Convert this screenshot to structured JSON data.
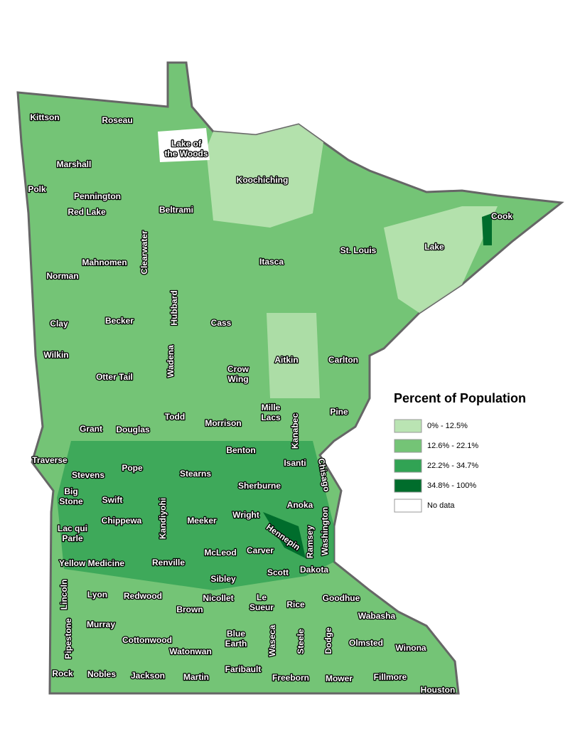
{
  "legend": {
    "title": "Percent of Population",
    "items": [
      {
        "label": "0% - 12.5%",
        "color": "#bae4b3"
      },
      {
        "label": "12.6% - 22.1%",
        "color": "#74c476"
      },
      {
        "label": "22.2% - 34.7%",
        "color": "#31a354"
      },
      {
        "label": "34.8% - 100%",
        "color": "#006d2c"
      },
      {
        "label": "No data",
        "color": "#ffffff"
      }
    ]
  },
  "counties": [
    "Kittson",
    "Roseau",
    [
      "Lake of",
      "the Woods"
    ],
    "Marshall",
    "Polk",
    "Pennington",
    "Red Lake",
    "Koochiching",
    "Beltrami",
    "Cook",
    "Lake",
    "St. Louis",
    "Itasca",
    "Mahnomen",
    "Clearwater",
    "Norman",
    "Hubbard",
    "Clay",
    "Becker",
    "Cass",
    "Wilkin",
    "Aitkin",
    "Carlton",
    "Otter Tail",
    "Wadena",
    [
      "Crow",
      "Wing"
    ],
    [
      "Mille",
      "Lacs"
    ],
    "Pine",
    "Kanabec",
    "Grant",
    "Douglas",
    "Todd",
    "Morrison",
    "Traverse",
    "Benton",
    "Isanti",
    "Chisago",
    "Stevens",
    "Pope",
    "Stearns",
    "Sherburne",
    [
      "Big",
      "Stone"
    ],
    "Swift",
    "Anoka",
    "Kandiyohi",
    "Wright",
    "Chippewa",
    "Meeker",
    "Hennepin",
    "Ramsey",
    "Washington",
    [
      "Lac qui",
      "Parle"
    ],
    "McLeod",
    "Carver",
    "Yellow Medicine",
    "Renville",
    "Scott",
    "Dakota",
    "Sibley",
    "Lincoln",
    "Lyon",
    "Redwood",
    "Nicollet",
    [
      "Le",
      "Sueur"
    ],
    "Rice",
    "Goodhue",
    "Brown",
    "Wabasha",
    "Murray",
    "Pipestone",
    "Cottonwood",
    [
      "Blue",
      "Earth"
    ],
    "Waseca",
    "Steele",
    "Dodge",
    "Olmsted",
    "Winona",
    "Watonwan",
    "Rock",
    "Nobles",
    "Jackson",
    "Martin",
    "Faribault",
    "Freeborn",
    "Mower",
    "Fillmore",
    "Houston"
  ]
}
